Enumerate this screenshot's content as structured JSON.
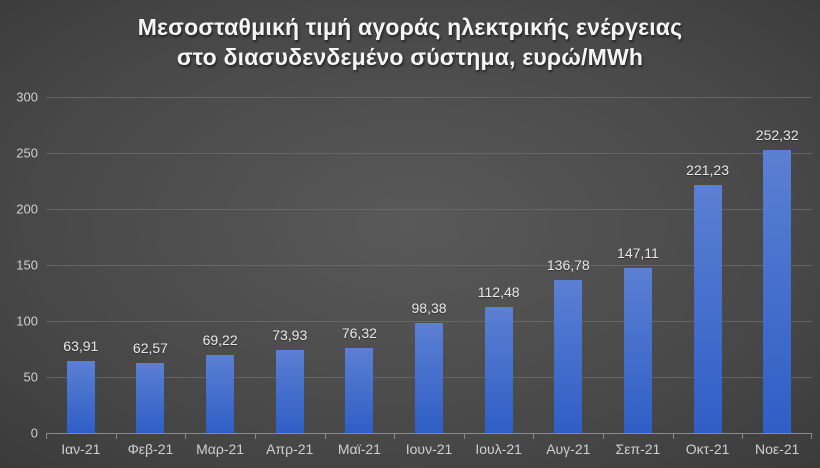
{
  "chart_data": {
    "type": "bar",
    "title_lines": [
      "Μεσοσταθμική τιμή αγοράς ηλεκτρικής ενέργειας",
      "στο διασυδενδεμένο σύστημα, ευρώ/MWh"
    ],
    "title": "Μεσοσταθμική τιμή αγοράς ηλεκτρικής ενέργειας στο διασυδενδεμένο σύστημα, ευρώ/MWh",
    "categories": [
      "Ιαν-21",
      "Φεβ-21",
      "Μαρ-21",
      "Απρ-21",
      "Μαϊ-21",
      "Ιουν-21",
      "Ιουλ-21",
      "Αυγ-21",
      "Σεπ-21",
      "Οκτ-21",
      "Νοε-21"
    ],
    "values": [
      63.91,
      62.57,
      69.22,
      73.93,
      76.32,
      98.38,
      112.48,
      136.78,
      147.11,
      221.23,
      252.32
    ],
    "value_labels": [
      "63,91",
      "62,57",
      "69,22",
      "73,93",
      "76,32",
      "98,38",
      "112,48",
      "136,78",
      "147,11",
      "221,23",
      "252,32"
    ],
    "y_ticks": [
      0,
      50,
      100,
      150,
      200,
      250,
      300
    ],
    "ylim": [
      0,
      300
    ],
    "xlabel": "",
    "ylabel": "",
    "grid": "horizontal",
    "legend_position": "none",
    "colors": {
      "bar_top": "#5b80d3",
      "bar_bottom": "#2f5ec5",
      "background_center": "#595959",
      "background_edge": "#242424",
      "gridline": "#6e6e6e",
      "axis_line": "#8a8a8a",
      "title_text": "#f5f5f5",
      "axis_text": "#cfcfcf",
      "value_label_text": "#e8e8e8"
    }
  }
}
